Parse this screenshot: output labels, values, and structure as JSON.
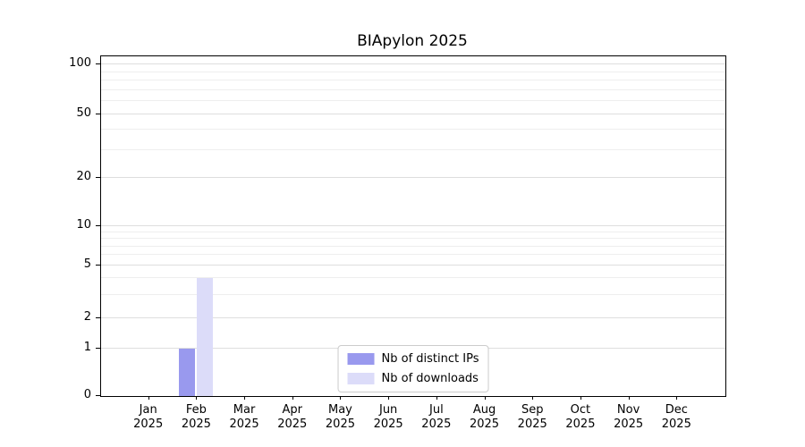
{
  "chart_data": {
    "type": "bar",
    "title": "BIApylon 2025",
    "scale": "symlog",
    "grid": true,
    "legend_position": "lower center",
    "categories": [
      "Jan 2025",
      "Feb 2025",
      "Mar 2025",
      "Apr 2025",
      "May 2025",
      "Jun 2025",
      "Jul 2025",
      "Aug 2025",
      "Sep 2025",
      "Oct 2025",
      "Nov 2025",
      "Dec 2025"
    ],
    "y_ticks": [
      0,
      1,
      2,
      5,
      10,
      20,
      50,
      100
    ],
    "y_minor_ticks": [
      3,
      4,
      6,
      7,
      8,
      9,
      30,
      40,
      60,
      70,
      80,
      90
    ],
    "ylim": [
      0,
      110
    ],
    "series": [
      {
        "name": "Nb of distinct IPs",
        "color": "#9999ee",
        "values": [
          0,
          1,
          0,
          0,
          0,
          0,
          0,
          0,
          0,
          0,
          0,
          0
        ]
      },
      {
        "name": "Nb of downloads",
        "color": "#dcdcf9",
        "values": [
          0,
          4,
          0,
          0,
          0,
          0,
          0,
          0,
          0,
          0,
          0,
          0
        ]
      }
    ]
  }
}
